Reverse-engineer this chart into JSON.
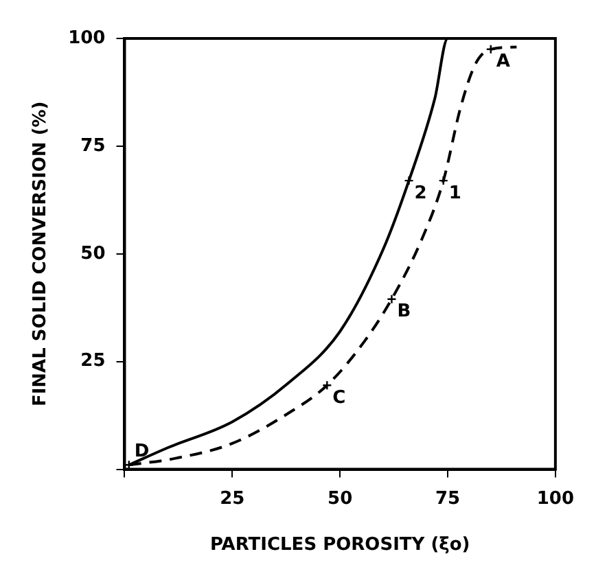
{
  "chart_data": {
    "type": "line",
    "xlabel": "PARTICLES POROSITY (ξo)",
    "ylabel": "FINAL SOLID CONVERSION (%)",
    "series": [
      {
        "color": "#000000",
        "line_style": "dashed",
        "x": [
          1,
          11.6,
          25,
          38,
          47,
          55.6,
          62,
          69,
          74,
          78,
          81.4,
          85,
          91
        ],
        "values": [
          1,
          2.5,
          6,
          13,
          19.5,
          29.6,
          39.5,
          53.4,
          67,
          84,
          94,
          97.5,
          98
        ]
      },
      {
        "color": "#000000",
        "line_style": "solid",
        "x": [
          1,
          10,
          25,
          38,
          50,
          60,
          66,
          72,
          75,
          100
        ],
        "values": [
          1,
          5,
          11,
          20,
          32,
          51,
          67,
          86,
          100,
          100
        ]
      }
    ],
    "annotations": [
      {
        "text": "A",
        "x": 85,
        "y": 97.5
      },
      {
        "text": "B",
        "x": 62,
        "y": 39.5
      },
      {
        "text": "C",
        "x": 47,
        "y": 19.5
      },
      {
        "text": "D",
        "x": 1,
        "y": 1
      },
      {
        "text": "1",
        "x": 74,
        "y": 67
      },
      {
        "text": "2",
        "x": 66,
        "y": 67
      }
    ],
    "xlim": [
      0,
      100
    ],
    "ylim": [
      0,
      100
    ],
    "xticks": [
      {
        "value": 0,
        "label": null
      },
      25,
      50,
      75,
      100
    ],
    "yticks": [
      {
        "value": 0,
        "label": null
      },
      25,
      50,
      75,
      100
    ],
    "grid": false,
    "legend": false,
    "marker": "none"
  }
}
